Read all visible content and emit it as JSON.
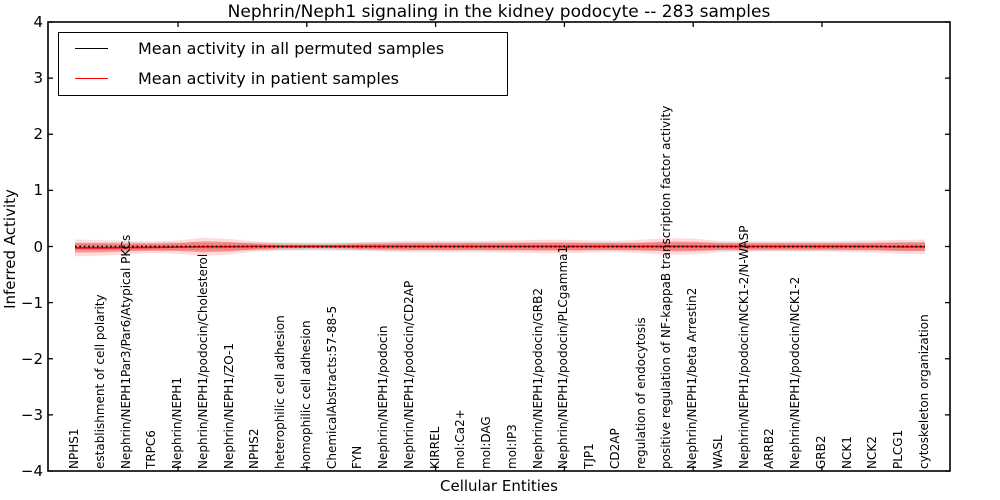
{
  "figure": {
    "title": "Nephrin/Neph1 signaling in the kidney podocyte -- 283 samples",
    "xlabel": "Cellular Entities",
    "ylabel": "Inferred Activity"
  },
  "legend": {
    "items": [
      {
        "label": "Mean activity in all permuted samples",
        "color": "#000000"
      },
      {
        "label": "Mean activity in patient samples",
        "color": "#ff0000"
      }
    ]
  },
  "chart_data": {
    "type": "line",
    "title": "Nephrin/Neph1 signaling in the kidney podocyte -- 283 samples",
    "xlabel": "Cellular Entities",
    "ylabel": "Inferred Activity",
    "ylim": [
      -4,
      4
    ],
    "yticks": [
      -4,
      -3,
      -2,
      -1,
      0,
      1,
      2,
      3,
      4
    ],
    "x_major_tick_indices": [
      4,
      9,
      14,
      19,
      24,
      29
    ],
    "grid": false,
    "legend_position": "upper left",
    "categories": [
      "NPHS1",
      "establishment of cell polarity",
      "Nephrin/NEPH1Par3/Par6/Atypical PKCs",
      "TRPC6",
      "Nephrin/NEPH1",
      "Nephrin/NEPH1/podocin/Cholesterol",
      "Nephrin/NEPH1/ZO-1",
      "NPHS2",
      "heterophilic cell adhesion",
      "homophilic cell adhesion",
      "ChemicalAbstracts:57-88-5",
      "FYN",
      "Nephrin/NEPH1/podocin",
      "Nephrin/NEPH1/podocin/CD2AP",
      "KIRREL",
      "mol:Ca2+",
      "mol:DAG",
      "mol:IP3",
      "Nephrin/NEPH1/podocin/GRB2",
      "Nephrin/NEPH1/podocin/PLCgamma1",
      "TJP1",
      "CD2AP",
      "regulation of endocytosis",
      "positive regulation of NF-kappaB transcription factor activity",
      "Nephrin/NEPH1/beta Arrestin2",
      "WASL",
      "Nephrin/NEPH1/podocin/NCK1-2/N-WASP",
      "ARRB2",
      "Nephrin/NEPH1/podocin/NCK1-2",
      "GRB2",
      "NCK1",
      "NCK2",
      "PLCG1",
      "cytoskeleton organization"
    ],
    "series": [
      {
        "name": "Mean activity in all permuted samples",
        "color": "#000000",
        "linestyle": "dotted",
        "values": [
          0,
          0,
          0,
          0,
          0,
          0,
          0,
          0,
          0,
          0,
          0,
          0,
          0,
          0,
          0,
          0,
          0,
          0,
          0,
          0,
          0,
          0,
          0,
          0,
          0,
          0,
          0,
          0,
          0,
          0,
          0,
          0,
          0,
          0
        ],
        "band_halfwidth": [
          0.07,
          0.07,
          0.07,
          0.07,
          0.07,
          0.07,
          0.07,
          0.07,
          0.07,
          0.07,
          0.07,
          0.07,
          0.07,
          0.07,
          0.07,
          0.07,
          0.07,
          0.07,
          0.07,
          0.07,
          0.07,
          0.07,
          0.07,
          0.07,
          0.07,
          0.07,
          0.07,
          0.07,
          0.07,
          0.07,
          0.07,
          0.07,
          0.08,
          0.08
        ]
      },
      {
        "name": "Mean activity in patient samples",
        "color": "#ff0000",
        "linestyle": "solid",
        "values": [
          -0.025,
          -0.025,
          -0.02,
          -0.015,
          -0.01,
          -0.005,
          -0.005,
          0,
          0,
          0,
          0,
          0,
          0,
          0,
          0,
          0,
          0,
          0,
          0,
          0,
          0,
          0,
          0,
          0,
          0,
          0,
          0,
          0,
          0,
          0,
          0,
          0,
          -0.005,
          -0.005
        ],
        "band_halfwidth_inner": [
          0.085,
          0.08,
          0.07,
          0.06,
          0.07,
          0.1,
          0.085,
          0.05,
          0.03,
          0.027,
          0.027,
          0.04,
          0.05,
          0.06,
          0.06,
          0.06,
          0.062,
          0.065,
          0.07,
          0.072,
          0.065,
          0.06,
          0.07,
          0.09,
          0.085,
          0.06,
          0.055,
          0.055,
          0.055,
          0.055,
          0.06,
          0.065,
          0.07,
          0.075
        ],
        "band_halfwidth_outer": [
          0.15,
          0.14,
          0.12,
          0.1,
          0.12,
          0.16,
          0.14,
          0.09,
          0.06,
          0.05,
          0.05,
          0.07,
          0.09,
          0.1,
          0.1,
          0.1,
          0.1,
          0.11,
          0.12,
          0.12,
          0.11,
          0.1,
          0.12,
          0.15,
          0.14,
          0.1,
          0.09,
          0.09,
          0.09,
          0.09,
          0.1,
          0.11,
          0.12,
          0.13
        ]
      }
    ]
  }
}
